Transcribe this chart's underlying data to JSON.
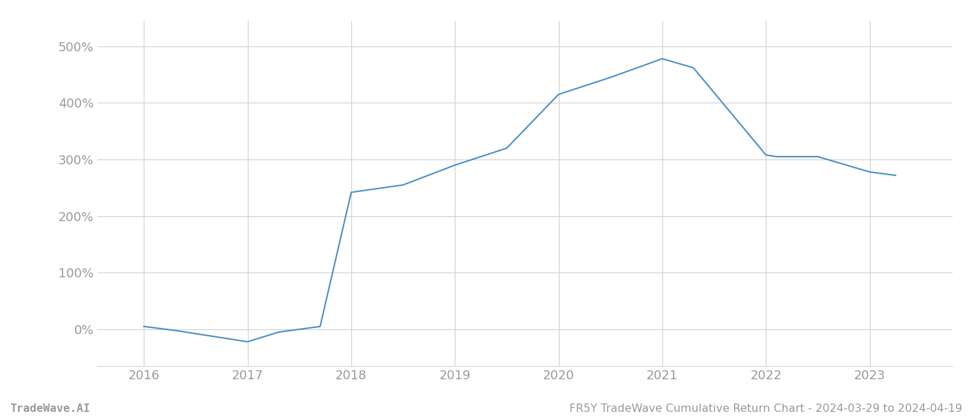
{
  "x_years": [
    2016.0,
    2016.3,
    2017.0,
    2017.3,
    2017.7,
    2018.0,
    2018.5,
    2019.0,
    2019.5,
    2020.0,
    2020.5,
    2021.0,
    2021.3,
    2022.0,
    2022.1,
    2022.5,
    2023.0,
    2023.25
  ],
  "y_values": [
    5,
    -2,
    -22,
    -5,
    5,
    242,
    255,
    290,
    320,
    415,
    445,
    478,
    462,
    308,
    305,
    305,
    278,
    272
  ],
  "line_color": "#4a90c4",
  "line_width": 1.5,
  "background_color": "#ffffff",
  "grid_color": "#d0d0d0",
  "xlim": [
    2015.55,
    2023.8
  ],
  "ylim": [
    -65,
    545
  ],
  "yticks": [
    0,
    100,
    200,
    300,
    400,
    500
  ],
  "ytick_labels": [
    "0%",
    "100%",
    "200%",
    "300%",
    "400%",
    "500%"
  ],
  "xticks": [
    2016,
    2017,
    2018,
    2019,
    2020,
    2021,
    2022,
    2023
  ],
  "xtick_labels": [
    "2016",
    "2017",
    "2018",
    "2019",
    "2020",
    "2021",
    "2022",
    "2023"
  ],
  "footer_left": "TradeWave.AI",
  "footer_right": "FR5Y TradeWave Cumulative Return Chart - 2024-03-29 to 2024-04-19",
  "tick_color": "#999999",
  "footer_color": "#999999",
  "footer_fontsize": 11.5,
  "tick_fontsize": 13
}
